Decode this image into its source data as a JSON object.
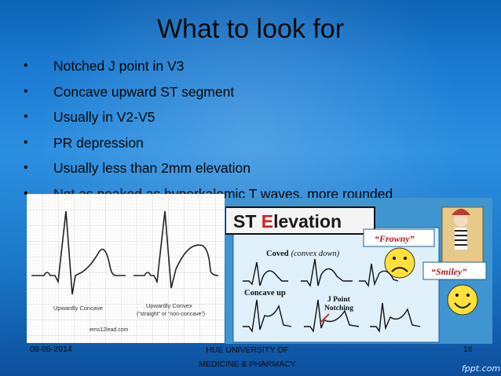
{
  "slide": {
    "title": "What to look for",
    "bullets": [
      "Notched J point in V3",
      "Concave upward ST segment",
      "Usually in V2-V5",
      "PR depression",
      "Usually less than 2mm elevation",
      "Not as peaked as hyperkalemic T waves, more rounded"
    ]
  },
  "figure_left": {
    "label_concave": "Upwardly Concave",
    "label_convex_line1": "Upwardly Convex",
    "label_convex_line2": "(“straight” or “non-concave”)",
    "credit": "ems12lead.com"
  },
  "figure_right": {
    "title_st": "ST ",
    "title_e": "E",
    "title_rest": "levation",
    "frowny": "“Frowny”",
    "smiley": "“Smiley”",
    "coved_bold": "Coved",
    "coved_paren": "(convex down)",
    "concave_up": "Concave up",
    "j_point_line1": "J Point",
    "j_point_line2": "Notching"
  },
  "footer": {
    "date": "08-05-2014",
    "org_line1": "HUE UNIVERSITY OF",
    "org_line2": "MEDICINE & PHARMACY",
    "page": "16",
    "watermark": "fppt.com"
  }
}
